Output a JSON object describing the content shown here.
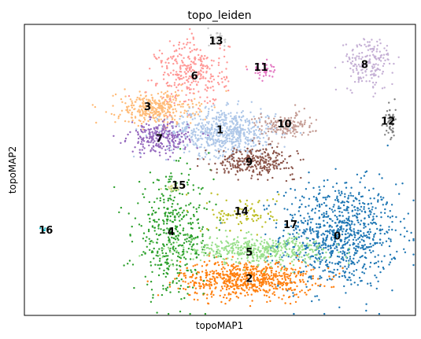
{
  "chart_data": {
    "type": "scatter",
    "title": "topo_leiden",
    "xlabel": "topoMAP1",
    "ylabel": "topoMAP2",
    "xlim": [
      0,
      100
    ],
    "ylim": [
      0,
      100
    ],
    "grid": false,
    "ticks": false,
    "clusters": [
      {
        "label": "0",
        "color": "#1f77b4",
        "center": [
          80.5,
          27.5
        ],
        "spread": [
          7.5,
          9.0
        ],
        "count": 900
      },
      {
        "label": "1",
        "color": "#aec7e8",
        "center": [
          50.5,
          63.0
        ],
        "spread": [
          7.0,
          4.0
        ],
        "count": 650
      },
      {
        "label": "2",
        "color": "#ff7f0e",
        "center": [
          57.0,
          12.5
        ],
        "spread": [
          8.5,
          3.2
        ],
        "count": 700
      },
      {
        "label": "3",
        "color": "#ffbb78",
        "center": [
          33.5,
          71.0
        ],
        "spread": [
          5.0,
          2.8
        ],
        "count": 350
      },
      {
        "label": "4",
        "color": "#2ca02c",
        "center": [
          38.0,
          27.5
        ],
        "spread": [
          5.0,
          10.0
        ],
        "count": 450
      },
      {
        "label": "5",
        "color": "#98df8a",
        "center": [
          59.5,
          22.5
        ],
        "spread": [
          9.0,
          2.2
        ],
        "count": 450
      },
      {
        "label": "6",
        "color": "#ff9896",
        "center": [
          43.0,
          83.5
        ],
        "spread": [
          4.5,
          5.5
        ],
        "count": 300
      },
      {
        "label": "7",
        "color": "#9467bd",
        "center": [
          34.5,
          61.0
        ],
        "spread": [
          3.8,
          2.6
        ],
        "count": 250
      },
      {
        "label": "8",
        "color": "#c5b0d5",
        "center": [
          88.0,
          86.5
        ],
        "spread": [
          3.2,
          4.5
        ],
        "count": 180
      },
      {
        "label": "9",
        "color": "#8c564b",
        "center": [
          59.0,
          53.0
        ],
        "spread": [
          5.0,
          2.3
        ],
        "count": 300
      },
      {
        "label": "10",
        "color": "#c49c94",
        "center": [
          66.5,
          65.0
        ],
        "spread": [
          3.8,
          2.2
        ],
        "count": 160
      },
      {
        "label": "11",
        "color": "#e377c2",
        "center": [
          61.0,
          84.5
        ],
        "spread": [
          1.3,
          1.4
        ],
        "count": 40
      },
      {
        "label": "12",
        "color": "#7f7f7f",
        "center": [
          93.5,
          66.0
        ],
        "spread": [
          0.7,
          3.2
        ],
        "count": 50
      },
      {
        "label": "13",
        "color": "#c7c7c7",
        "center": [
          49.5,
          95.0
        ],
        "spread": [
          1.0,
          1.8
        ],
        "count": 30
      },
      {
        "label": "14",
        "color": "#bcbd22",
        "center": [
          56.0,
          35.0
        ],
        "spread": [
          4.5,
          3.0
        ],
        "count": 90
      },
      {
        "label": "15",
        "color": "#dbdb8d",
        "center": [
          38.5,
          44.0
        ],
        "spread": [
          1.3,
          1.0
        ],
        "count": 25
      },
      {
        "label": "16",
        "color": "#17becf",
        "center": [
          5.0,
          29.5
        ],
        "spread": [
          0.4,
          0.4
        ],
        "count": 6
      },
      {
        "label": "17",
        "color": "#ffffff",
        "center": [
          68.0,
          31.5
        ],
        "spread": [
          0.0,
          0.0
        ],
        "count": 0
      }
    ],
    "annotations": [
      {
        "text": "0",
        "x": 80.0,
        "y": 27.0
      },
      {
        "text": "1",
        "x": 50.0,
        "y": 63.5
      },
      {
        "text": "2",
        "x": 57.5,
        "y": 12.5
      },
      {
        "text": "3",
        "x": 31.5,
        "y": 71.5
      },
      {
        "text": "4",
        "x": 37.5,
        "y": 28.5
      },
      {
        "text": "5",
        "x": 57.5,
        "y": 21.5
      },
      {
        "text": "6",
        "x": 43.5,
        "y": 82.0
      },
      {
        "text": "7",
        "x": 34.5,
        "y": 60.5
      },
      {
        "text": "8",
        "x": 87.0,
        "y": 86.0
      },
      {
        "text": "9",
        "x": 57.5,
        "y": 52.5
      },
      {
        "text": "10",
        "x": 66.5,
        "y": 65.5
      },
      {
        "text": "11",
        "x": 60.5,
        "y": 85.0
      },
      {
        "text": "12",
        "x": 93.0,
        "y": 66.5
      },
      {
        "text": "13",
        "x": 49.0,
        "y": 94.0
      },
      {
        "text": "14",
        "x": 55.5,
        "y": 35.5
      },
      {
        "text": "15",
        "x": 39.5,
        "y": 44.5
      },
      {
        "text": "16",
        "x": 5.5,
        "y": 29.0
      },
      {
        "text": "17",
        "x": 68.0,
        "y": 31.0
      }
    ]
  }
}
